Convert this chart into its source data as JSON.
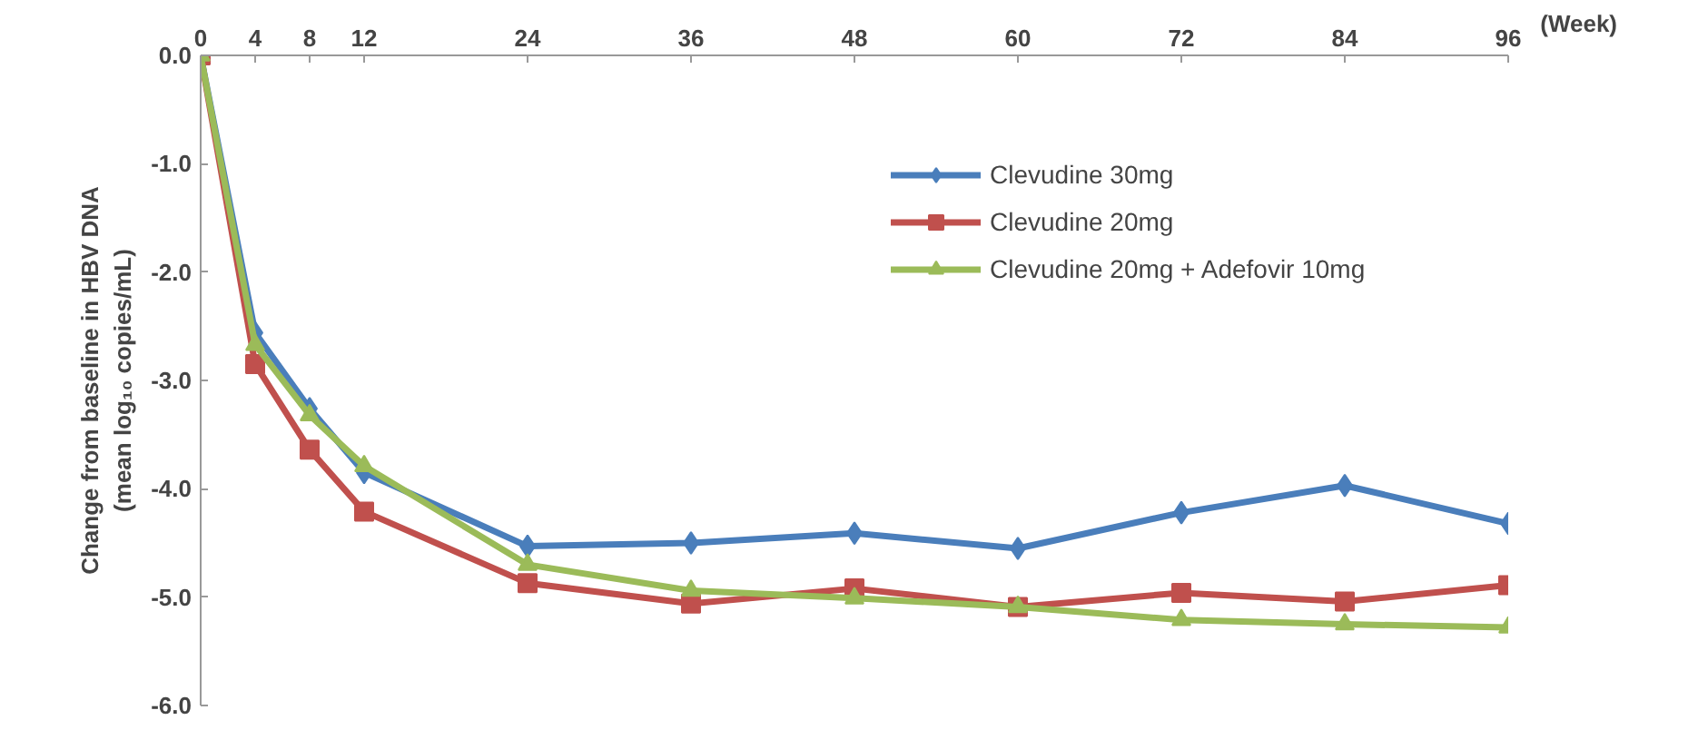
{
  "chart_data": {
    "type": "line",
    "xlabel": "(Week)",
    "ylabel": "Change from baseline in HBV DNA\n(mean log₁₀ copies/mL)",
    "x": [
      0,
      4,
      8,
      12,
      24,
      36,
      48,
      60,
      72,
      84,
      96
    ],
    "xlim": [
      0,
      96
    ],
    "xticks": [
      0,
      4,
      8,
      12,
      24,
      36,
      48,
      60,
      72,
      84,
      96
    ],
    "ylim": [
      -6,
      0
    ],
    "yticks": [
      {
        "value": 0,
        "label": "0.0"
      },
      {
        "value": -1,
        "label": "-1.0"
      },
      {
        "value": -2,
        "label": "-2.0"
      },
      {
        "value": -3,
        "label": "-3.0"
      },
      {
        "value": -4,
        "label": "-4.0"
      },
      {
        "value": -5,
        "label": "-5.0"
      },
      {
        "value": -6,
        "label": "-6.0"
      }
    ],
    "grid": false,
    "legend": "top right",
    "series": [
      {
        "name": "Clevudine 30mg",
        "color": "#4a7ebb",
        "marker": "diamond",
        "values": [
          0,
          -2.56,
          -3.26,
          -3.85,
          -4.53,
          -4.5,
          -4.41,
          -4.55,
          -4.22,
          -3.97,
          -4.32
        ]
      },
      {
        "name": "Clevudine 20mg",
        "color": "#c0504d",
        "marker": "square",
        "values": [
          0,
          -2.85,
          -3.64,
          -4.21,
          -4.87,
          -5.06,
          -4.92,
          -5.09,
          -4.96,
          -5.04,
          -4.89
        ]
      },
      {
        "name": "Clevudine 20mg + Adefovir 10mg",
        "color": "#9bbb59",
        "marker": "triangle",
        "values": [
          0,
          -2.67,
          -3.32,
          -3.79,
          -4.7,
          -4.94,
          -5.01,
          -5.09,
          -5.21,
          -5.25,
          -5.28
        ]
      }
    ]
  }
}
